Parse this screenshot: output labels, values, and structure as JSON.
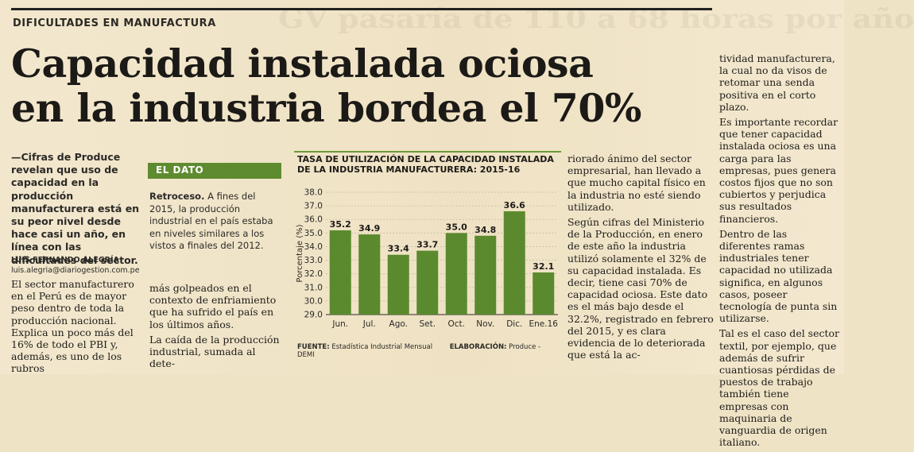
{
  "section_label": "DIFICULTADES EN MANUFACTURA",
  "headline": {
    "line1": "Capacidad instalada ociosa",
    "line2": "en la industria bordea el 70%"
  },
  "lede": "—Cifras de Produce revelan que uso de capacidad en la producción manufacturera está en su peor nivel desde hace casi un año, en línea con las dificultades del sector.",
  "byline": {
    "name": "LUIS FERNANDO ALEGRÍA",
    "email": "luis.alegria@diariogestion.com.pe"
  },
  "col1_paragraphs": [
    "El sector manufacturero en el Perú es de mayor peso dentro de toda la producción nacional. Explica un poco más del 16% de todo el PBI y, además, es uno de los rubros"
  ],
  "el_dato": {
    "label": "EL DATO",
    "lead": "Retroceso.",
    "text": " A fines del 2015, la producción industrial en el país estaba en niveles similares a los vistos a finales del 2012."
  },
  "col2_paragraphs": [
    "más golpeados en el contexto de enfriamiento que ha sufrido el país en los últimos años.",
    "La caída de la producción industrial, sumada al dete-"
  ],
  "col3_paragraphs": [
    "riorado ánimo del sector empresarial, han llevado a que mucho capital físico en la industria no esté siendo utilizado.",
    "Según cifras del Ministerio de la Producción, en enero de este año la industria utilizó solamente el 32% de su capacidad instalada. Es decir, tiene casi 70% de capacidad ociosa. Este dato es el más bajo desde el 32.2%, registrado en febrero del 2015, y es clara evidencia de lo deteriorada que está la ac-"
  ],
  "col4_paragraphs": [
    "tividad manufacturera, la cual no da visos de retomar una senda positiva en el corto plazo.",
    "Es importante recordar que tener capacidad instalada ociosa es una carga para las empresas, pues genera costos fijos que no son cubiertos y perjudica sus resultados financieros.",
    "Dentro de las diferentes ramas industriales tener capacidad no utilizada significa, en algunos casos, poseer tecnología de punta sin utilizarse.",
    "Tal es el caso del sector textil, por ejemplo, que además de sufrir cuantiosas pérdidas de puestos de trabajo también tiene empresas con maquinaria de vanguardia de origen italiano."
  ],
  "bleed_text": "GV pasaría de 110 a 68 horas por año",
  "chart_data": {
    "type": "bar",
    "title": "TASA DE UTILIZACIÓN DE LA CAPACIDAD INSTALADA DE LA INDUSTRIA MANUFACTURERA: 2015-16",
    "categories": [
      "Jun.",
      "Jul.",
      "Ago.",
      "Set.",
      "Oct.",
      "Nov.",
      "Dic.",
      "Ene.16"
    ],
    "values": [
      35.2,
      34.9,
      33.4,
      33.7,
      35.0,
      34.8,
      36.6,
      32.1
    ],
    "ylabel": "Porcentaje (%)",
    "xlabel": "",
    "ylim": [
      29.0,
      38.0
    ],
    "yticks": [
      29.0,
      30.0,
      31.0,
      32.0,
      33.0,
      34.0,
      35.0,
      36.0,
      37.0,
      38.0
    ],
    "bar_color": "#5b8a2e",
    "grid": true,
    "source_label": "FUENTE:",
    "source": "Estadística Industrial Mensual",
    "elaboration_label": "ELABORACIÓN:",
    "elaboration": "Produce - DEMI"
  },
  "colors": {
    "accent_green": "#5e8b2f",
    "paper": "#efe3c6"
  }
}
